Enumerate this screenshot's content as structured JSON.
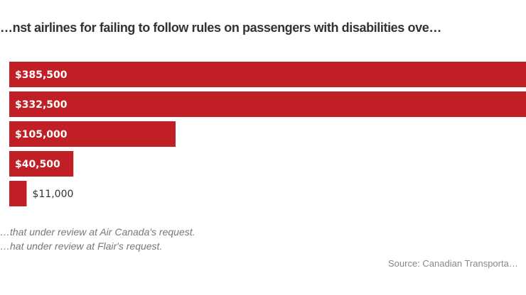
{
  "chart_data": {
    "type": "bar",
    "orientation": "horizontal",
    "title": "…nst airlines for failing to follow rules on passengers with disabilities ove…",
    "values": [
      385500,
      332500,
      105000,
      40500,
      11000
    ],
    "labels": [
      "$385,500",
      "$332,500",
      "$105,000",
      "$40,500",
      "$11,000"
    ],
    "bar_color": "#c11f26",
    "grid": false
  },
  "notes": [
    "…that under review at Air Canada's request.",
    "…hat under review at Flair's request."
  ],
  "source": "Source: Canadian Transporta…"
}
